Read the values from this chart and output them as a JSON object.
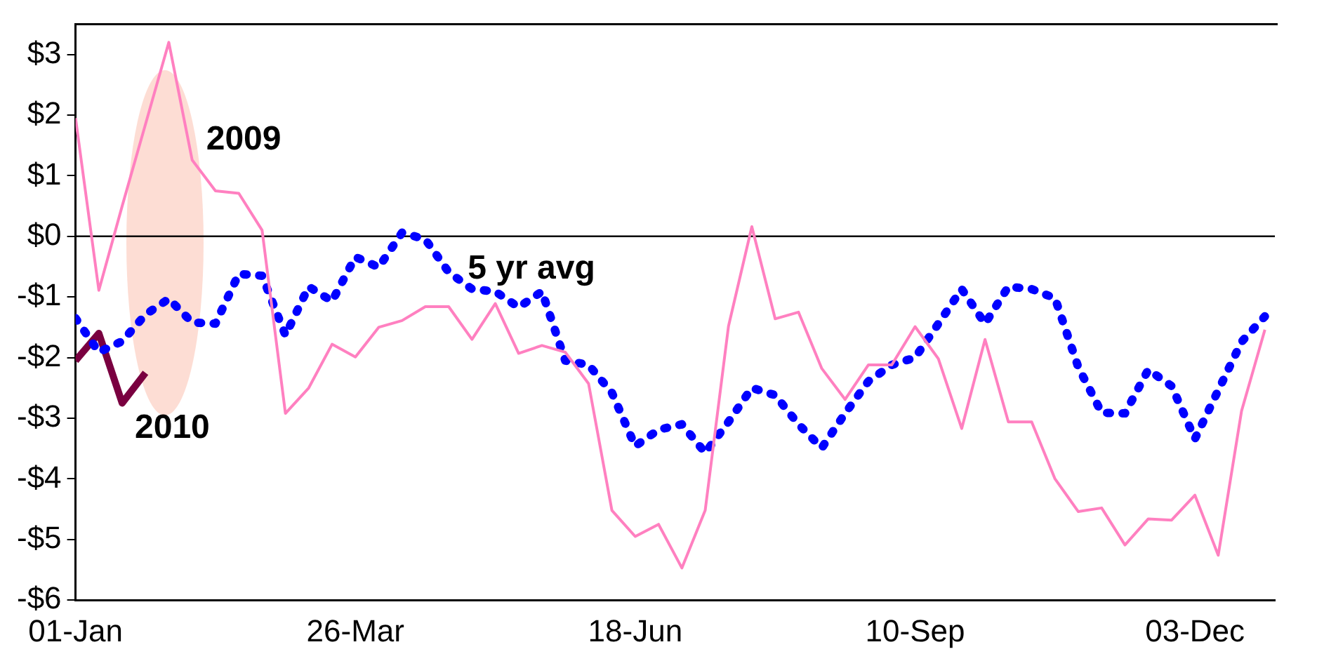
{
  "chart_data": {
    "type": "line",
    "x": [
      "--01-01",
      "--01-08",
      "--01-15",
      "--01-22",
      "--01-29",
      "--02-05",
      "--02-12",
      "--02-19",
      "--02-26",
      "--03-05",
      "--03-12",
      "--03-19",
      "--03-26",
      "--04-02",
      "--04-09",
      "--04-16",
      "--04-23",
      "--04-30",
      "--05-07",
      "--05-14",
      "--05-21",
      "--05-28",
      "--06-04",
      "--06-11",
      "--06-18",
      "--06-25",
      "--07-02",
      "--07-09",
      "--07-16",
      "--07-23",
      "--07-30",
      "--08-06",
      "--08-13",
      "--08-20",
      "--08-27",
      "--09-03",
      "--09-10",
      "--09-17",
      "--09-24",
      "--10-01",
      "--10-08",
      "--10-15",
      "--10-22",
      "--10-29",
      "--11-05",
      "--11-12",
      "--11-19",
      "--11-26",
      "--12-03",
      "--12-10",
      "--12-17",
      "--12-24"
    ],
    "series": [
      {
        "name": "2009",
        "color": "#ff80c0",
        "line_style": "solid",
        "values": [
          1.95,
          -0.89,
          0.5,
          1.85,
          3.2,
          1.26,
          0.75,
          0.71,
          0.1,
          -2.92,
          -2.5,
          -1.78,
          -1.99,
          -1.5,
          -1.39,
          -1.16,
          -1.16,
          -1.7,
          -1.11,
          -1.93,
          -1.8,
          -1.91,
          -2.43,
          -4.52,
          -4.95,
          -4.75,
          -5.47,
          -4.52,
          -1.48,
          0.16,
          -1.36,
          -1.25,
          -2.18,
          -2.69,
          -2.12,
          -2.12,
          -1.49,
          -2.02,
          -3.17,
          -1.7,
          -3.06,
          -3.06,
          -4.0,
          -4.54,
          -4.48,
          -5.09,
          -4.66,
          -4.68,
          -4.27,
          -5.26,
          -2.88,
          -1.54
        ]
      },
      {
        "name": "5 yr avg",
        "color": "#0000ff",
        "line_style": "dotted",
        "values": [
          -1.35,
          -1.91,
          -1.73,
          -1.29,
          -1.03,
          -1.42,
          -1.44,
          -0.62,
          -0.65,
          -1.63,
          -0.83,
          -1.07,
          -0.34,
          -0.51,
          0.06,
          -0.05,
          -0.59,
          -0.87,
          -0.91,
          -1.17,
          -0.91,
          -2.05,
          -2.12,
          -2.58,
          -3.46,
          -3.19,
          -3.1,
          -3.57,
          -3.06,
          -2.5,
          -2.62,
          -3.1,
          -3.49,
          -2.92,
          -2.39,
          -2.12,
          -2.0,
          -1.44,
          -0.87,
          -1.44,
          -0.83,
          -0.87,
          -1.02,
          -2.16,
          -2.91,
          -2.92,
          -2.2,
          -2.47,
          -3.34,
          -2.54,
          -1.74,
          -1.32
        ]
      },
      {
        "name": "2010",
        "color": "#7a0040",
        "line_style": "solid",
        "x": [
          "--01-01",
          "--01-08",
          "--01-15",
          "--01-22"
        ],
        "values": [
          -2.05,
          -1.6,
          -2.75,
          -2.25
        ]
      }
    ],
    "xlim": [
      "--01-01",
      "--12-27"
    ],
    "xticks": [
      {
        "value": "--01-01",
        "label": "01-Jan"
      },
      {
        "value": "--03-26",
        "label": "26-Mar"
      },
      {
        "value": "--06-18",
        "label": "18-Jun"
      },
      {
        "value": "--09-10",
        "label": "10-Sep"
      },
      {
        "value": "--12-03",
        "label": "03-Dec"
      }
    ],
    "ylim": [
      -6,
      3.5
    ],
    "yticks": [
      {
        "value": -6,
        "label": "-$6"
      },
      {
        "value": -5,
        "label": "-$5"
      },
      {
        "value": -4,
        "label": "-$4"
      },
      {
        "value": -3,
        "label": "-$3"
      },
      {
        "value": -2,
        "label": "-$2"
      },
      {
        "value": -1,
        "label": "-$1"
      },
      {
        "value": 0,
        "label": "$0"
      },
      {
        "value": 1,
        "label": "$1"
      },
      {
        "value": 2,
        "label": "$2"
      },
      {
        "value": 3,
        "label": "$3"
      }
    ],
    "ref_lines": [
      {
        "axis": "y",
        "value": 0,
        "color": "#000000"
      }
    ],
    "grid": false,
    "legend": false,
    "marker": "none"
  }
}
